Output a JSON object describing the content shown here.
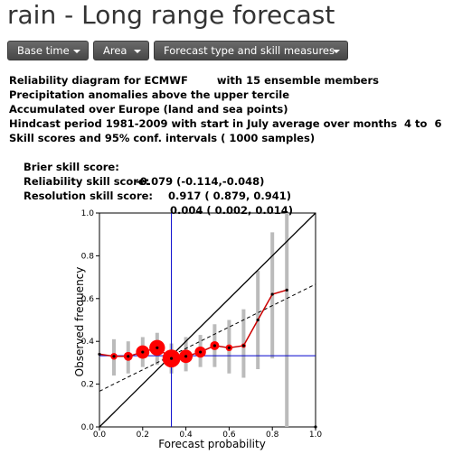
{
  "page": {
    "title": "rain - Long range forecast"
  },
  "toolbar": {
    "base_time_label": "Base time",
    "area_label": "Area",
    "forecast_type_label": "Forecast type and skill measures"
  },
  "info": {
    "line1": "Reliability diagram for ECMWF        with 15 ensemble members",
    "line2": "Precipitation anomalies above the upper tercile",
    "line3": "Accumulated over Europe (land and sea points)",
    "line4": "Hindcast period 1981-2009 with start in July average over months  4 to  6",
    "line5": "Skill scores and 95% conf. intervals ( 1000 samples)",
    "brier_label": "Brier skill score:",
    "brier_value": "-0.079 (-0.114,-0.048)",
    "reliability_label": "Reliability skill score:",
    "reliability_value": "0.917 ( 0.879, 0.941)",
    "resolution_label": "Resolution skill score:",
    "resolution_value": "0.004 ( 0.002, 0.014)"
  },
  "chart_data": {
    "type": "scatter",
    "title": "",
    "xlabel": "Forecast probability",
    "ylabel": "Observed frequency",
    "xlim": [
      0,
      1
    ],
    "ylim": [
      0,
      1
    ],
    "x_ticks": [
      "0.0",
      "0.2",
      "0.4",
      "0.6",
      "0.8",
      "1.0"
    ],
    "y_ticks": [
      "0.0",
      "0.2",
      "0.4",
      "0.6",
      "0.8",
      "1.0"
    ],
    "climatology": 0.333,
    "diagonal": [
      [
        0,
        0
      ],
      [
        1,
        1
      ]
    ],
    "no_skill_line": [
      [
        0,
        0.167
      ],
      [
        1,
        0.667
      ]
    ],
    "points": [
      {
        "x": 0.0,
        "y": 0.34,
        "size": 1,
        "ci": [
          0.34,
          0.34
        ]
      },
      {
        "x": 0.067,
        "y": 0.33,
        "size": 6,
        "ci": [
          0.24,
          0.41
        ]
      },
      {
        "x": 0.133,
        "y": 0.33,
        "size": 8,
        "ci": [
          0.25,
          0.4
        ]
      },
      {
        "x": 0.2,
        "y": 0.35,
        "size": 12,
        "ci": [
          0.28,
          0.42
        ]
      },
      {
        "x": 0.267,
        "y": 0.37,
        "size": 14,
        "ci": [
          0.29,
          0.44
        ]
      },
      {
        "x": 0.333,
        "y": 0.32,
        "size": 16,
        "ci": [
          0.25,
          0.39
        ]
      },
      {
        "x": 0.4,
        "y": 0.33,
        "size": 12,
        "ci": [
          0.26,
          0.42
        ]
      },
      {
        "x": 0.467,
        "y": 0.35,
        "size": 10,
        "ci": [
          0.28,
          0.43
        ]
      },
      {
        "x": 0.533,
        "y": 0.38,
        "size": 8,
        "ci": [
          0.28,
          0.48
        ]
      },
      {
        "x": 0.6,
        "y": 0.37,
        "size": 6,
        "ci": [
          0.25,
          0.5
        ]
      },
      {
        "x": 0.667,
        "y": 0.38,
        "size": 4,
        "ci": [
          0.23,
          0.55
        ]
      },
      {
        "x": 0.733,
        "y": 0.5,
        "size": 2,
        "ci": [
          0.27,
          0.73
        ]
      },
      {
        "x": 0.8,
        "y": 0.62,
        "size": 1,
        "ci": [
          0.32,
          0.91
        ]
      },
      {
        "x": 0.867,
        "y": 0.64,
        "size": 1,
        "ci": [
          0.0,
          1.0
        ]
      },
      {
        "x": 1.0,
        "y": 0.0,
        "size": 0,
        "ci": [
          0.0,
          0.0
        ]
      }
    ],
    "colors": {
      "points": "#ff0000",
      "line": "#cc0000",
      "center": "#000000",
      "ci_bars": "#bbbbbb",
      "climatology": "#0000cc",
      "diagonal": "#000000",
      "no_skill": "#000000"
    }
  }
}
